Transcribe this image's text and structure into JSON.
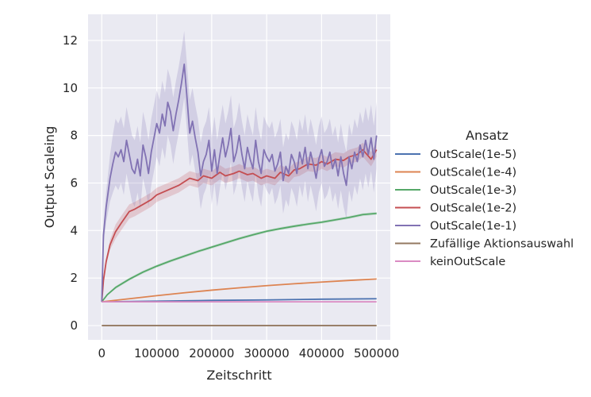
{
  "chart_data": {
    "type": "line",
    "xlabel": "Zeitschritt",
    "ylabel": "Output Scaleing",
    "xlim": [
      -25000,
      525000
    ],
    "ylim": [
      -0.6,
      13.1
    ],
    "xticks": [
      0,
      100000,
      200000,
      300000,
      400000,
      500000
    ],
    "xtick_labels": [
      "0",
      "100000",
      "200000",
      "300000",
      "400000",
      "500000"
    ],
    "yticks": [
      0,
      2,
      4,
      6,
      8,
      10,
      12
    ],
    "ytick_labels": [
      "0",
      "2",
      "4",
      "6",
      "8",
      "10",
      "12"
    ],
    "grid": true,
    "legend": {
      "title": "Ansatz",
      "placement": "right"
    },
    "series": [
      {
        "name": "OutScale(1e-5)",
        "color": "#4c72b0",
        "x": [
          0,
          100000,
          200000,
          300000,
          400000,
          500000
        ],
        "y": [
          1.0,
          1.03,
          1.06,
          1.08,
          1.11,
          1.13
        ]
      },
      {
        "name": "OutScale(1e-4)",
        "color": "#dd8452",
        "x": [
          0,
          50000,
          100000,
          150000,
          200000,
          250000,
          300000,
          350000,
          400000,
          450000,
          500000
        ],
        "y": [
          1.0,
          1.13,
          1.26,
          1.38,
          1.49,
          1.59,
          1.68,
          1.76,
          1.83,
          1.9,
          1.96
        ]
      },
      {
        "name": "OutScale(1e-3)",
        "color": "#55a868",
        "x": [
          0,
          10000,
          25000,
          50000,
          75000,
          100000,
          125000,
          150000,
          175000,
          200000,
          225000,
          250000,
          275000,
          300000,
          325000,
          350000,
          375000,
          400000,
          425000,
          450000,
          475000,
          500000
        ],
        "y": [
          1.0,
          1.3,
          1.6,
          1.95,
          2.25,
          2.5,
          2.72,
          2.92,
          3.12,
          3.3,
          3.48,
          3.66,
          3.82,
          3.97,
          4.08,
          4.18,
          4.27,
          4.35,
          4.45,
          4.55,
          4.67,
          4.72
        ]
      },
      {
        "name": "OutScale(1e-2)",
        "color": "#c44e52",
        "x": [
          0,
          3000,
          8000,
          15000,
          25000,
          35000,
          50000,
          60000,
          75000,
          90000,
          100000,
          110000,
          125000,
          140000,
          150000,
          160000,
          175000,
          185000,
          200000,
          215000,
          225000,
          240000,
          250000,
          265000,
          275000,
          290000,
          300000,
          315000,
          325000,
          340000,
          350000,
          360000,
          375000,
          390000,
          400000,
          410000,
          425000,
          440000,
          450000,
          465000,
          475000,
          490000,
          500000
        ],
        "y": [
          1.0,
          1.9,
          2.7,
          3.4,
          3.95,
          4.3,
          4.8,
          4.9,
          5.1,
          5.3,
          5.5,
          5.6,
          5.75,
          5.9,
          6.05,
          6.2,
          6.1,
          6.3,
          6.2,
          6.45,
          6.3,
          6.4,
          6.5,
          6.35,
          6.4,
          6.2,
          6.3,
          6.2,
          6.45,
          6.3,
          6.55,
          6.6,
          6.8,
          6.75,
          6.9,
          6.8,
          7.0,
          6.95,
          7.1,
          7.2,
          7.4,
          7.0,
          7.4
        ]
      },
      {
        "name": "OutScale(1e-1)",
        "color": "#8172b3",
        "x": [
          0,
          3000,
          8000,
          15000,
          20000,
          25000,
          30000,
          35000,
          40000,
          45000,
          50000,
          55000,
          60000,
          65000,
          70000,
          75000,
          80000,
          85000,
          90000,
          95000,
          100000,
          105000,
          110000,
          115000,
          120000,
          125000,
          130000,
          135000,
          140000,
          145000,
          150000,
          155000,
          160000,
          165000,
          170000,
          175000,
          180000,
          185000,
          190000,
          195000,
          200000,
          205000,
          210000,
          215000,
          220000,
          225000,
          230000,
          235000,
          240000,
          245000,
          250000,
          255000,
          260000,
          265000,
          270000,
          275000,
          280000,
          285000,
          290000,
          295000,
          300000,
          305000,
          310000,
          315000,
          320000,
          325000,
          330000,
          335000,
          340000,
          345000,
          350000,
          355000,
          360000,
          365000,
          370000,
          375000,
          380000,
          385000,
          390000,
          395000,
          400000,
          405000,
          410000,
          415000,
          420000,
          425000,
          430000,
          435000,
          440000,
          445000,
          450000,
          455000,
          460000,
          465000,
          470000,
          475000,
          480000,
          485000,
          490000,
          495000,
          500000
        ],
        "y": [
          1.0,
          3.8,
          5.0,
          6.2,
          6.8,
          7.3,
          7.1,
          7.4,
          6.9,
          7.8,
          7.2,
          6.6,
          6.4,
          7.0,
          6.3,
          7.6,
          7.1,
          6.4,
          7.3,
          7.9,
          8.5,
          8.1,
          8.9,
          8.4,
          9.4,
          9.0,
          8.2,
          8.9,
          9.5,
          10.2,
          11.0,
          9.6,
          8.1,
          8.6,
          7.9,
          7.3,
          6.3,
          6.9,
          7.2,
          7.8,
          6.5,
          7.4,
          6.4,
          7.2,
          7.9,
          7.1,
          7.6,
          8.3,
          6.9,
          7.3,
          8.0,
          7.2,
          6.6,
          7.5,
          7.0,
          6.6,
          7.8,
          6.9,
          6.4,
          7.4,
          7.1,
          6.9,
          7.2,
          6.5,
          6.8,
          7.3,
          6.1,
          6.7,
          6.4,
          7.2,
          6.9,
          6.4,
          7.3,
          6.8,
          7.5,
          6.6,
          7.3,
          6.8,
          6.2,
          7.0,
          7.4,
          6.7,
          6.9,
          7.3,
          6.6,
          7.0,
          6.3,
          7.1,
          6.4,
          5.9,
          7.1,
          6.6,
          7.3,
          6.9,
          7.6,
          7.1,
          7.8,
          7.2,
          7.9,
          7.0,
          8.0
        ]
      },
      {
        "name": "Zufällige Aktionsauswahl",
        "color": "#937860",
        "x": [
          0,
          500000
        ],
        "y": [
          0.0,
          0.0
        ]
      },
      {
        "name": "keinOutScale",
        "color": "#da8bc3",
        "x": [
          0,
          500000
        ],
        "y": [
          1.0,
          1.0
        ]
      }
    ]
  }
}
